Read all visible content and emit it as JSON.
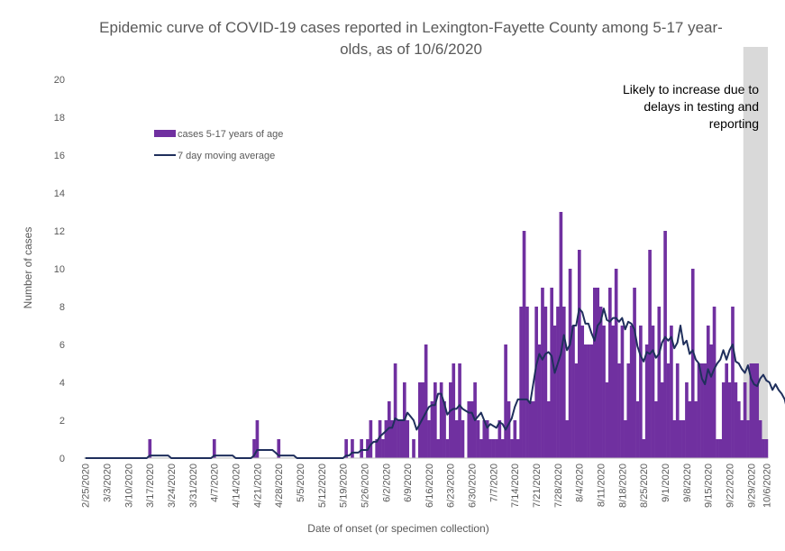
{
  "chart_data": {
    "type": "bar",
    "title_lines": [
      "Epidemic curve of COVID-19 cases reported in Lexington-Fayette County among 5-17 year-",
      "olds, as of 10/6/2020"
    ],
    "xlabel": "Date of onset (or specimen collection)",
    "ylabel": "Number of cases",
    "ylim": [
      0,
      20
    ],
    "yticks": [
      "0",
      "2",
      "4",
      "6",
      "8",
      "10",
      "12",
      "14",
      "16",
      "18",
      "20"
    ],
    "xtick_labels": [
      "2/25/2020",
      "3/3/2020",
      "3/10/2020",
      "3/17/2020",
      "3/24/2020",
      "3/31/2020",
      "4/7/2020",
      "4/14/2020",
      "4/21/2020",
      "4/28/2020",
      "5/5/2020",
      "5/12/2020",
      "5/19/2020",
      "5/26/2020",
      "6/2/2020",
      "6/9/2020",
      "6/16/2020",
      "6/23/2020",
      "6/30/2020",
      "7/7/2020",
      "7/14/2020",
      "7/21/2020",
      "7/28/2020",
      "8/4/2020",
      "8/11/2020",
      "8/18/2020",
      "8/25/2020",
      "9/1/2020",
      "9/8/2020",
      "9/15/2020",
      "9/22/2020",
      "9/29/2020",
      "10/6/2020"
    ],
    "grid": false,
    "legend_position": "upper-left",
    "colors": {
      "bars": "#7030a0",
      "line": "#1f2f5c",
      "shade": "#d9d9d9",
      "axis": "#bfbfbf",
      "text": "#595959"
    },
    "series": [
      {
        "name": "cases 5-17 years of age",
        "type": "bar",
        "values": [
          0,
          0,
          0,
          0,
          0,
          0,
          0,
          0,
          0,
          0,
          0,
          0,
          0,
          0,
          0,
          0,
          0,
          0,
          0,
          0,
          0,
          1,
          0,
          0,
          0,
          0,
          0,
          0,
          0,
          0,
          0,
          0,
          0,
          0,
          0,
          0,
          0,
          0,
          0,
          0,
          0,
          0,
          1,
          0,
          0,
          0,
          0,
          0,
          0,
          0,
          0,
          0,
          0,
          0,
          0,
          1,
          2,
          0,
          0,
          0,
          0,
          0,
          0,
          1,
          0,
          0,
          0,
          0,
          0,
          0,
          0,
          0,
          0,
          0,
          0,
          0,
          0,
          0,
          0,
          0,
          0,
          0,
          0,
          0,
          0,
          1,
          0,
          1,
          0,
          0,
          1,
          0,
          1,
          2,
          0,
          1,
          2,
          1,
          2,
          3,
          2,
          5,
          2,
          2,
          4,
          2,
          0,
          1,
          0,
          4,
          4,
          6,
          2,
          3,
          4,
          1,
          4,
          3,
          1,
          4,
          5,
          2,
          5,
          2,
          0,
          3,
          3,
          4,
          2,
          1,
          2,
          2,
          1,
          1,
          1,
          2,
          1,
          6,
          3,
          1,
          2,
          1,
          8,
          12,
          8,
          3,
          3,
          8,
          6,
          9,
          8,
          3,
          9,
          7,
          8,
          13,
          8,
          2,
          10,
          7,
          5,
          11,
          7,
          6,
          6,
          6,
          9,
          9,
          8,
          7,
          4,
          9,
          7,
          10,
          5,
          7,
          2,
          5,
          7,
          9,
          3,
          7,
          1,
          6,
          11,
          7,
          3,
          8,
          4,
          12,
          5,
          7,
          2,
          5,
          2,
          2,
          4,
          3,
          10,
          3,
          5,
          5,
          5,
          7,
          6,
          8,
          1,
          1,
          4,
          5,
          4,
          8,
          4,
          3,
          2,
          4,
          2,
          5,
          5,
          5,
          2,
          1,
          1
        ]
      },
      {
        "name": "7 day moving average",
        "type": "line",
        "values": [
          0,
          0,
          0,
          0,
          0,
          0,
          0,
          0,
          0,
          0,
          0,
          0,
          0,
          0,
          0,
          0,
          0,
          0,
          0,
          0,
          0,
          0.14,
          0.14,
          0.14,
          0.14,
          0.14,
          0.14,
          0.14,
          0,
          0,
          0,
          0,
          0,
          0,
          0,
          0,
          0,
          0,
          0,
          0,
          0,
          0,
          0.14,
          0.14,
          0.14,
          0.14,
          0.14,
          0.14,
          0.14,
          0,
          0,
          0,
          0,
          0,
          0,
          0.14,
          0.43,
          0.43,
          0.43,
          0.43,
          0.43,
          0.43,
          0.29,
          0.14,
          0.14,
          0.14,
          0.14,
          0.14,
          0.14,
          0,
          0,
          0,
          0,
          0,
          0,
          0,
          0,
          0,
          0,
          0,
          0,
          0,
          0,
          0,
          0,
          0.14,
          0.14,
          0.29,
          0.29,
          0.29,
          0.43,
          0.43,
          0.43,
          0.71,
          0.86,
          0.86,
          1.14,
          1.28,
          1.44,
          1.6,
          1.6,
          2.1,
          2.0,
          2.0,
          2.0,
          2.4,
          2.2,
          2.0,
          1.5,
          1.8,
          2.1,
          2.4,
          2.7,
          2.8,
          2.8,
          3.4,
          3.4,
          2.9,
          2.3,
          2.5,
          2.6,
          2.6,
          2.8,
          2.6,
          2.5,
          2.4,
          2.4,
          2.0,
          2.2,
          2.4,
          2.0,
          1.6,
          1.8,
          1.7,
          1.6,
          1.9,
          1.8,
          1.5,
          1.8,
          2.1,
          2.7,
          3.1,
          3.1,
          3.1,
          3.1,
          2.9,
          3.9,
          4.9,
          5.5,
          5.2,
          5.5,
          5.6,
          5.4,
          4.5,
          5.0,
          5.5,
          6.5,
          5.7,
          6.0,
          7.0,
          7.0,
          7.9,
          7.7,
          7.1,
          7.1,
          6.6,
          6.2,
          7.0,
          7.2,
          7.9,
          7.3,
          7.2,
          7.4,
          7.4,
          7.2,
          7.4,
          6.8,
          7.2,
          7.1,
          6.8,
          5.9,
          5.4,
          5.1,
          5.6,
          5.5,
          5.7,
          5.3,
          5.5,
          6.1,
          6.4,
          6.2,
          6.4,
          5.8,
          6.1,
          7.0,
          6.0,
          6.2,
          5.5,
          5.7,
          5.2,
          5.0,
          4.2,
          3.9,
          4.7,
          4.3,
          4.7,
          5.0,
          5.2,
          5.7,
          5.2,
          5.7,
          6.0,
          5.1,
          5.0,
          4.7,
          4.5,
          4.9,
          4.2,
          3.9,
          3.8,
          4.2,
          4.4,
          4.1,
          4.0,
          3.6,
          3.9,
          3.6,
          3.4,
          3.1,
          2.4
        ]
      }
    ],
    "annotation_lines": [
      "Likely to increase due to",
      "delays in testing and",
      "reporting"
    ]
  }
}
